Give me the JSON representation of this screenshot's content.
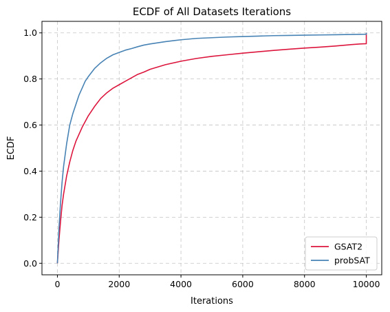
{
  "chart_data": {
    "type": "line",
    "title": "ECDF of All Datasets Iterations",
    "xlabel": "Iterations",
    "ylabel": "ECDF",
    "xlim": [
      -500,
      10500
    ],
    "ylim": [
      -0.05,
      1.05
    ],
    "xticks": [
      0,
      2000,
      4000,
      6000,
      8000,
      10000
    ],
    "xtick_labels": [
      "0",
      "2000",
      "4000",
      "6000",
      "8000",
      "10000"
    ],
    "yticks": [
      0.0,
      0.2,
      0.4,
      0.6,
      0.8,
      1.0
    ],
    "ytick_labels": [
      "0.0",
      "0.2",
      "0.4",
      "0.6",
      "0.8",
      "1.0"
    ],
    "grid": true,
    "legend_position": "bottom-right",
    "series": [
      {
        "name": "GSAT2",
        "color": "#dc143c",
        "x": [
          0,
          50,
          100,
          150,
          200,
          300,
          400,
          500,
          600,
          700,
          800,
          900,
          1000,
          1200,
          1400,
          1600,
          1800,
          2000,
          2200,
          2400,
          2600,
          2800,
          3000,
          3500,
          4000,
          4500,
          5000,
          5500,
          6000,
          6500,
          7000,
          7500,
          8000,
          8500,
          9000,
          9500,
          9800,
          10000,
          10000,
          10000
        ],
        "y": [
          0.0,
          0.1,
          0.18,
          0.25,
          0.3,
          0.38,
          0.44,
          0.49,
          0.53,
          0.56,
          0.59,
          0.615,
          0.64,
          0.68,
          0.715,
          0.74,
          0.76,
          0.775,
          0.79,
          0.805,
          0.82,
          0.83,
          0.842,
          0.862,
          0.877,
          0.889,
          0.898,
          0.905,
          0.912,
          0.918,
          0.924,
          0.929,
          0.934,
          0.938,
          0.943,
          0.949,
          0.952,
          0.953,
          0.953,
          1.0
        ]
      },
      {
        "name": "probSAT",
        "color": "#4682b4",
        "x": [
          0,
          50,
          100,
          150,
          200,
          300,
          400,
          500,
          600,
          700,
          800,
          900,
          1000,
          1200,
          1400,
          1600,
          1800,
          2000,
          2200,
          2400,
          2600,
          2800,
          3000,
          3500,
          4000,
          4500,
          5000,
          5500,
          6000,
          6500,
          7000,
          7500,
          8000,
          8500,
          9000,
          9500,
          10000,
          10000
        ],
        "y": [
          0.0,
          0.15,
          0.26,
          0.35,
          0.42,
          0.52,
          0.6,
          0.65,
          0.69,
          0.73,
          0.76,
          0.79,
          0.81,
          0.845,
          0.87,
          0.89,
          0.905,
          0.915,
          0.925,
          0.932,
          0.94,
          0.947,
          0.952,
          0.962,
          0.97,
          0.976,
          0.979,
          0.982,
          0.984,
          0.986,
          0.988,
          0.989,
          0.99,
          0.991,
          0.992,
          0.993,
          0.994,
          1.0
        ]
      }
    ]
  }
}
